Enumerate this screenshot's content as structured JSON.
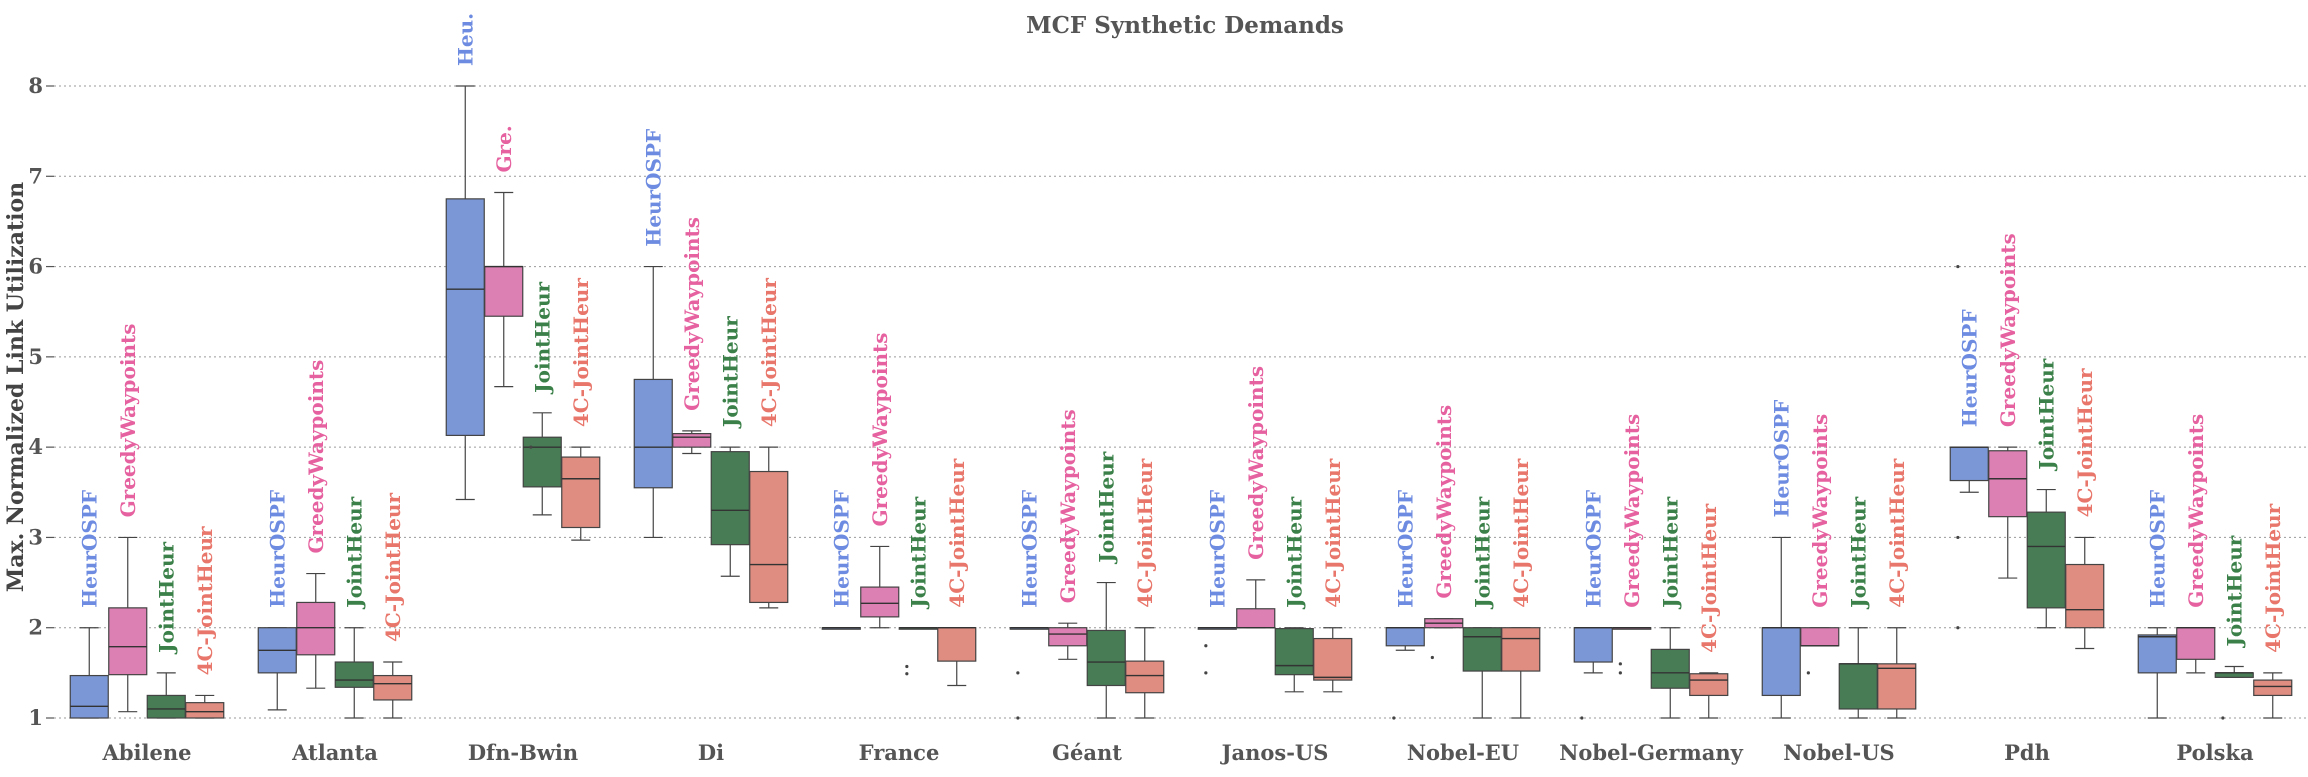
{
  "chart_data": {
    "type": "boxplot",
    "title": "MCF Synthetic Demands",
    "xlabel": "",
    "ylabel": "Max. Normalized Link Utilization",
    "ylim": [
      0.97,
      8.4
    ],
    "yticks": [
      1,
      2,
      3,
      4,
      5,
      6,
      7,
      8
    ],
    "grid": "horizontal-dotted",
    "legend": "inline-rotated-labels-above-boxes",
    "categories": [
      "Abilene",
      "Atlanta",
      "Dfn-Bwin",
      "Di",
      "France",
      "Géant",
      "Janos-US",
      "Nobel-EU",
      "Nobel-Germany",
      "Nobel-US",
      "Pdh",
      "Polska"
    ],
    "series": [
      {
        "name": "HeurOSPF",
        "color": "#7b97d6"
      },
      {
        "name": "GreedyWaypoints",
        "color": "#dc7fb3"
      },
      {
        "name": "JointHeur",
        "color": "#477c55"
      },
      {
        "name": "4C-JointHeur",
        "color": "#de8d80"
      }
    ],
    "label_colors": [
      "#6d8be0",
      "#e5619f",
      "#3a8048",
      "#e8766a"
    ],
    "groups": [
      {
        "category": "Abilene",
        "labels": [
          "HeurOSPF",
          "GreedyWaypoints",
          "JointHeur",
          "4C-JointHeur"
        ],
        "boxes": [
          {
            "whislo": 1.0,
            "q1": 1.0,
            "med": 1.13,
            "q3": 1.47,
            "whishi": 2.0,
            "fliers": []
          },
          {
            "whislo": 1.07,
            "q1": 1.48,
            "med": 1.79,
            "q3": 2.22,
            "whishi": 3.0,
            "fliers": []
          },
          {
            "whislo": 1.0,
            "q1": 1.0,
            "med": 1.1,
            "q3": 1.25,
            "whishi": 1.5,
            "fliers": []
          },
          {
            "whislo": 1.0,
            "q1": 1.0,
            "med": 1.07,
            "q3": 1.17,
            "whishi": 1.25,
            "fliers": []
          }
        ]
      },
      {
        "category": "Atlanta",
        "labels": [
          "HeurOSPF",
          "GreedyWaypoints",
          "JointHeur",
          "4C-JointHeur"
        ],
        "boxes": [
          {
            "whislo": 1.09,
            "q1": 1.5,
            "med": 1.75,
            "q3": 2.0,
            "whishi": 2.0,
            "fliers": []
          },
          {
            "whislo": 1.33,
            "q1": 1.7,
            "med": 2.0,
            "q3": 2.28,
            "whishi": 2.6,
            "fliers": []
          },
          {
            "whislo": 1.0,
            "q1": 1.34,
            "med": 1.42,
            "q3": 1.62,
            "whishi": 2.0,
            "fliers": []
          },
          {
            "whislo": 1.0,
            "q1": 1.2,
            "med": 1.38,
            "q3": 1.47,
            "whishi": 1.62,
            "fliers": []
          }
        ]
      },
      {
        "category": "Dfn-Bwin",
        "labels": [
          "Heu.",
          "Gre.",
          "JointHeur",
          "4C-JointHeur"
        ],
        "boxes": [
          {
            "whislo": 3.42,
            "q1": 4.13,
            "med": 5.75,
            "q3": 6.75,
            "whishi": 8.0,
            "fliers": []
          },
          {
            "whislo": 4.67,
            "q1": 5.45,
            "med": 6.0,
            "q3": 6.0,
            "whishi": 6.82,
            "fliers": []
          },
          {
            "whislo": 3.25,
            "q1": 3.56,
            "med": 4.0,
            "q3": 4.11,
            "whishi": 4.38,
            "fliers": [
              4.0
            ]
          },
          {
            "whislo": 2.97,
            "q1": 3.11,
            "med": 3.65,
            "q3": 3.89,
            "whishi": 4.0,
            "fliers": []
          }
        ]
      },
      {
        "category": "Di",
        "labels": [
          "HeurOSPF",
          "GreedyWaypoints",
          "JointHeur",
          "4C-JointHeur"
        ],
        "boxes": [
          {
            "whislo": 3.0,
            "q1": 3.55,
            "med": 4.0,
            "q3": 4.75,
            "whishi": 6.0,
            "fliers": []
          },
          {
            "whislo": 3.93,
            "q1": 4.0,
            "med": 4.11,
            "q3": 4.15,
            "whishi": 4.18,
            "fliers": []
          },
          {
            "whislo": 2.57,
            "q1": 2.92,
            "med": 3.3,
            "q3": 3.95,
            "whishi": 4.0,
            "fliers": []
          },
          {
            "whislo": 2.22,
            "q1": 2.28,
            "med": 2.7,
            "q3": 3.73,
            "whishi": 4.0,
            "fliers": []
          }
        ]
      },
      {
        "category": "France",
        "labels": [
          "HeurOSPF",
          "GreedyWaypoints",
          "JointHeur",
          "4C-JointHeur"
        ],
        "boxes": [
          {
            "whislo": 2.0,
            "q1": 2.0,
            "med": 2.0,
            "q3": 2.0,
            "whishi": 2.0,
            "fliers": []
          },
          {
            "whislo": 2.0,
            "q1": 2.12,
            "med": 2.27,
            "q3": 2.45,
            "whishi": 2.9,
            "fliers": []
          },
          {
            "whislo": 2.0,
            "q1": 2.0,
            "med": 2.0,
            "q3": 2.0,
            "whishi": 2.0,
            "fliers": [
              1.57,
              1.49
            ]
          },
          {
            "whislo": 1.36,
            "q1": 1.63,
            "med": 2.0,
            "q3": 2.0,
            "whishi": 2.0,
            "fliers": []
          }
        ]
      },
      {
        "category": "Géant",
        "labels": [
          "HeurOSPF",
          "GreedyWaypoints",
          "JointHeur",
          "4C-JointHeur"
        ],
        "boxes": [
          {
            "whislo": 2.0,
            "q1": 2.0,
            "med": 2.0,
            "q3": 2.0,
            "whishi": 2.0,
            "fliers": [
              1.5,
              1.0
            ]
          },
          {
            "whislo": 1.65,
            "q1": 1.8,
            "med": 1.93,
            "q3": 2.0,
            "whishi": 2.05,
            "fliers": []
          },
          {
            "whislo": 1.0,
            "q1": 1.36,
            "med": 1.62,
            "q3": 1.97,
            "whishi": 2.5,
            "fliers": []
          },
          {
            "whislo": 1.0,
            "q1": 1.28,
            "med": 1.47,
            "q3": 1.63,
            "whishi": 2.0,
            "fliers": []
          }
        ]
      },
      {
        "category": "Janos-US",
        "labels": [
          "HeurOSPF",
          "GreedyWaypoints",
          "JointHeur",
          "4C-JointHeur"
        ],
        "boxes": [
          {
            "whislo": 2.0,
            "q1": 2.0,
            "med": 2.0,
            "q3": 2.0,
            "whishi": 2.0,
            "fliers": [
              1.8,
              1.5
            ]
          },
          {
            "whislo": 2.0,
            "q1": 2.0,
            "med": 2.0,
            "q3": 2.21,
            "whishi": 2.53,
            "fliers": []
          },
          {
            "whislo": 1.29,
            "q1": 1.48,
            "med": 1.58,
            "q3": 1.99,
            "whishi": 2.0,
            "fliers": []
          },
          {
            "whislo": 1.29,
            "q1": 1.42,
            "med": 1.45,
            "q3": 1.88,
            "whishi": 2.0,
            "fliers": []
          }
        ]
      },
      {
        "category": "Nobel-EU",
        "labels": [
          "HeurOSPF",
          "GreedyWaypoints",
          "JointHeur",
          "4C-JointHeur"
        ],
        "boxes": [
          {
            "whislo": 1.75,
            "q1": 1.8,
            "med": 2.0,
            "q3": 2.0,
            "whishi": 2.0,
            "fliers": [
              1.0
            ]
          },
          {
            "whislo": 2.0,
            "q1": 2.0,
            "med": 2.05,
            "q3": 2.1,
            "whishi": 2.1,
            "fliers": [
              1.67
            ]
          },
          {
            "whislo": 1.0,
            "q1": 1.52,
            "med": 1.9,
            "q3": 2.0,
            "whishi": 2.0,
            "fliers": []
          },
          {
            "whislo": 1.0,
            "q1": 1.52,
            "med": 1.88,
            "q3": 2.0,
            "whishi": 2.0,
            "fliers": []
          }
        ]
      },
      {
        "category": "Nobel-Germany",
        "labels": [
          "HeurOSPF",
          "GreedyWaypoints",
          "JointHeur",
          "4C-JointHeur"
        ],
        "boxes": [
          {
            "whislo": 1.5,
            "q1": 1.62,
            "med": 2.0,
            "q3": 2.0,
            "whishi": 2.0,
            "fliers": [
              1.0
            ]
          },
          {
            "whislo": 2.0,
            "q1": 2.0,
            "med": 2.0,
            "q3": 2.0,
            "whishi": 2.0,
            "fliers": [
              1.6,
              1.5
            ]
          },
          {
            "whislo": 1.0,
            "q1": 1.33,
            "med": 1.5,
            "q3": 1.76,
            "whishi": 2.0,
            "fliers": []
          },
          {
            "whislo": 1.0,
            "q1": 1.25,
            "med": 1.42,
            "q3": 1.49,
            "whishi": 1.5,
            "fliers": []
          }
        ]
      },
      {
        "category": "Nobel-US",
        "labels": [
          "HeurOSPF",
          "GreedyWaypoints",
          "JointHeur",
          "4C-JointHeur"
        ],
        "boxes": [
          {
            "whislo": 1.0,
            "q1": 1.25,
            "med": 2.0,
            "q3": 2.0,
            "whishi": 3.0,
            "fliers": []
          },
          {
            "whislo": 1.8,
            "q1": 1.8,
            "med": 1.8,
            "q3": 2.0,
            "whishi": 2.0,
            "fliers": [
              1.5
            ]
          },
          {
            "whislo": 1.0,
            "q1": 1.1,
            "med": 1.6,
            "q3": 1.6,
            "whishi": 2.0,
            "fliers": []
          },
          {
            "whislo": 1.0,
            "q1": 1.1,
            "med": 1.55,
            "q3": 1.6,
            "whishi": 2.0,
            "fliers": []
          }
        ]
      },
      {
        "category": "Pdh",
        "labels": [
          "HeurOSPF",
          "GreedyWaypoints",
          "JointHeur",
          "4C-JointHeur"
        ],
        "boxes": [
          {
            "whislo": 3.5,
            "q1": 3.63,
            "med": 4.0,
            "q3": 4.0,
            "whishi": 4.0,
            "fliers": [
              6.0,
              3.0,
              2.0
            ]
          },
          {
            "whislo": 2.55,
            "q1": 3.23,
            "med": 3.65,
            "q3": 3.96,
            "whishi": 4.0,
            "fliers": []
          },
          {
            "whislo": 2.0,
            "q1": 2.22,
            "med": 2.9,
            "q3": 3.28,
            "whishi": 3.53,
            "fliers": []
          },
          {
            "whislo": 1.77,
            "q1": 2.0,
            "med": 2.2,
            "q3": 2.7,
            "whishi": 3.0,
            "fliers": []
          }
        ]
      },
      {
        "category": "Polska",
        "labels": [
          "HeurOSPF",
          "GreedyWaypoints",
          "JointHeur",
          "4C-JointHeur"
        ],
        "boxes": [
          {
            "whislo": 1.0,
            "q1": 1.5,
            "med": 1.9,
            "q3": 1.92,
            "whishi": 2.0,
            "fliers": []
          },
          {
            "whislo": 1.5,
            "q1": 1.65,
            "med": 2.0,
            "q3": 2.0,
            "whishi": 2.0,
            "fliers": []
          },
          {
            "whislo": 1.45,
            "q1": 1.45,
            "med": 1.5,
            "q3": 1.5,
            "whishi": 1.57,
            "fliers": [
              1.0
            ]
          },
          {
            "whislo": 1.0,
            "q1": 1.25,
            "med": 1.35,
            "q3": 1.42,
            "whishi": 1.5,
            "fliers": []
          }
        ]
      }
    ]
  }
}
